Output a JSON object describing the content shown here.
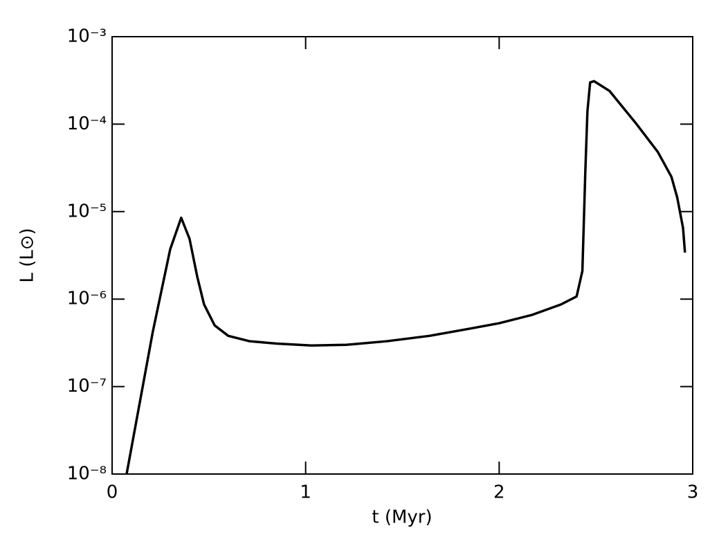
{
  "chart_data": {
    "type": "line",
    "xlabel": "t  (Myr)",
    "ylabel": "L (L⊙)",
    "xlim": [
      0,
      3
    ],
    "xticks": [
      0,
      1,
      2,
      3
    ],
    "ylim": [
      1e-08,
      0.001
    ],
    "log_y": true,
    "yticks": [
      {
        "value": 1e-08,
        "label": "10⁻⁸"
      },
      {
        "value": 1e-07,
        "label": "10⁻⁷"
      },
      {
        "value": 1e-06,
        "label": "10⁻⁶"
      },
      {
        "value": 1e-05,
        "label": "10⁻⁵"
      },
      {
        "value": 0.0001,
        "label": "10⁻⁴"
      },
      {
        "value": 0.001,
        "label": "10⁻³"
      }
    ],
    "grid": false,
    "series": [
      {
        "color": "#000000",
        "x": [
          0.075,
          0.21,
          0.3,
          0.357,
          0.4,
          0.44,
          0.475,
          0.53,
          0.6,
          0.71,
          0.85,
          1.03,
          1.21,
          1.42,
          1.64,
          1.85,
          2.0,
          2.17,
          2.32,
          2.4,
          2.43,
          2.445,
          2.456,
          2.47,
          2.49,
          2.57,
          2.71,
          2.82,
          2.89,
          2.92,
          2.95,
          2.96
        ],
        "values": [
          1e-08,
          4.2e-07,
          3.7e-06,
          8.5e-06,
          4.9e-06,
          1.8e-06,
          8.7e-07,
          5e-07,
          3.8e-07,
          3.3e-07,
          3.1e-07,
          2.95e-07,
          3e-07,
          3.3e-07,
          3.8e-07,
          4.6e-07,
          5.3e-07,
          6.6e-07,
          8.7e-07,
          1.07e-06,
          2.1e-06,
          2.8e-05,
          0.00014,
          0.0003,
          0.00031,
          0.00024,
          0.0001,
          4.8e-05,
          2.5e-05,
          1.45e-05,
          6.5e-06,
          3.4e-06
        ]
      }
    ]
  }
}
